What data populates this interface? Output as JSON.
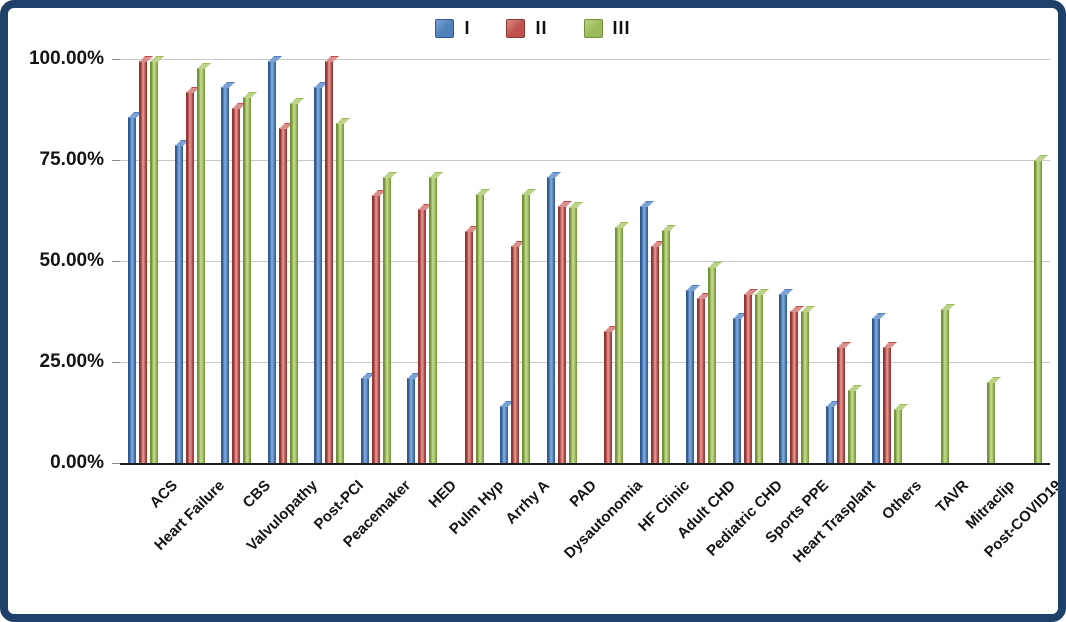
{
  "chart_data": {
    "type": "bar",
    "title": "",
    "xlabel": "",
    "ylabel": "",
    "ylim": [
      0,
      100
    ],
    "grid": true,
    "legend_position": "top-center",
    "y_ticks": [
      {
        "label": "100.00%",
        "value": 100
      },
      {
        "label": "75.00%",
        "value": 75
      },
      {
        "label": "50.00%",
        "value": 50
      },
      {
        "label": "25.00%",
        "value": 25
      },
      {
        "label": "0.00%",
        "value": 0
      }
    ],
    "categories": [
      "ACS",
      "Heart Failure",
      "CBS",
      "Valvulopathy",
      "Post-PCI",
      "Peacemaker",
      "HED",
      "Pulm Hyp",
      "Arrhy A",
      "PAD",
      "Dysautonomia",
      "HF Clinic",
      "Adult CHD",
      "Pediatric CHD",
      "Sports PPE",
      "Heart Trasplant",
      "Others",
      "TAVR",
      "Mitraclip",
      "Post-COVID19"
    ],
    "series": [
      {
        "name": "I",
        "color": "#4f81bd",
        "color_dark": "#31598c",
        "color_light": "#7ba2d4",
        "values": [
          85.7,
          78.6,
          93.0,
          99.5,
          93.0,
          21.0,
          21.0,
          null,
          14.0,
          70.7,
          null,
          63.7,
          42.8,
          35.8,
          41.8,
          14.0,
          35.9,
          null,
          null,
          null
        ]
      },
      {
        "name": "II",
        "color": "#c0504d",
        "color_dark": "#8e3734",
        "color_light": "#d98f8c",
        "values": [
          99.5,
          91.9,
          87.8,
          83.0,
          99.5,
          66.4,
          62.8,
          57.5,
          53.6,
          63.5,
          32.7,
          53.7,
          40.8,
          41.9,
          37.6,
          28.6,
          28.8,
          null,
          null,
          null
        ]
      },
      {
        "name": "III",
        "color": "#9bbb59",
        "color_dark": "#73913a",
        "color_light": "#bdd389",
        "values": [
          99.5,
          97.8,
          90.7,
          89.0,
          84.1,
          70.8,
          70.8,
          66.5,
          66.5,
          63.4,
          58.4,
          57.6,
          48.5,
          41.9,
          37.6,
          18.1,
          13.4,
          38.0,
          20.0,
          74.9
        ]
      }
    ],
    "frame_border_color": "#1f4068",
    "gridline_color": "#c8c8c8",
    "axis_line_color": "#1c1c1c"
  }
}
